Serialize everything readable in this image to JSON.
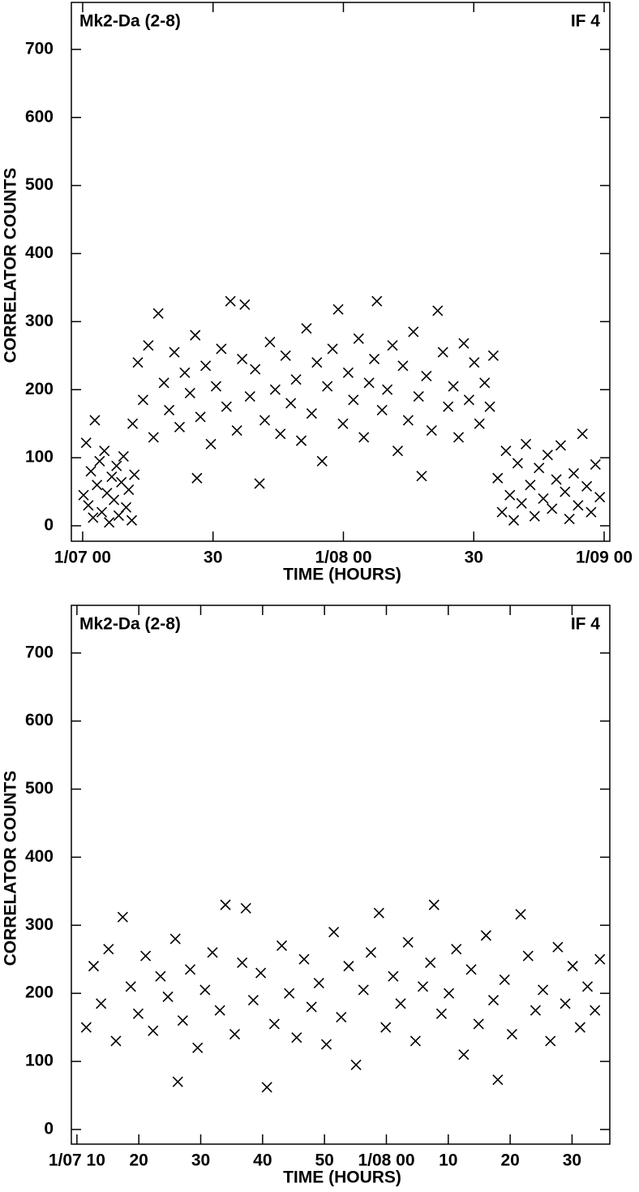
{
  "chart_data": [
    {
      "type": "scatter",
      "title": "Mk2-Da (2-8)",
      "annotation": "IF 4",
      "x_label": "TIME (HOURS)",
      "y_label": "CORRELATOR COUNTS",
      "color": "#000000",
      "xlim": [
        -2.6,
        121.3
      ],
      "ylim": [
        -22.7,
        769
      ],
      "xticks": [
        {
          "value": 0,
          "label": "1/07 00"
        },
        30,
        {
          "value": 60,
          "label": "1/08 00"
        },
        {
          "value": 90,
          "label": "30"
        },
        {
          "value": 120,
          "label": "1/09 00"
        }
      ],
      "yticks": [
        0,
        100,
        200,
        300,
        400,
        500,
        600,
        700
      ],
      "x": [
        0.2,
        0.8,
        1.3,
        1.9,
        2.4,
        2.8,
        3.3,
        3.9,
        4.4,
        5.0,
        5.6,
        6.1,
        6.7,
        7.2,
        7.8,
        8.3,
        8.9,
        9.4,
        10.0,
        10.6,
        11.3,
        11.9,
        11.5,
        12.7,
        13.9,
        15.1,
        16.3,
        17.4,
        18.7,
        19.9,
        21.1,
        22.3,
        23.5,
        24.7,
        25.9,
        26.3,
        27.1,
        28.3,
        29.5,
        30.7,
        31.9,
        33.1,
        34,
        35.5,
        36.7,
        37.3,
        38.5,
        39.7,
        40.7,
        41.9,
        43.1,
        44.3,
        45.5,
        46.7,
        47.9,
        49.1,
        50.3,
        51.5,
        52.7,
        53.9,
        55.1,
        56.3,
        57.5,
        58.8,
        59.9,
        61.1,
        62.3,
        63.5,
        64.7,
        65.9,
        67.1,
        67.7,
        68.9,
        70.1,
        71.3,
        72.5,
        73.7,
        74.9,
        76.1,
        77.3,
        78,
        79.1,
        80.3,
        81.7,
        82.9,
        84.1,
        85.3,
        86.5,
        87.7,
        88.9,
        90.1,
        91.3,
        92.5,
        93.7,
        94.5,
        95.5,
        96.5,
        97.4,
        98.3,
        99.2,
        100.1,
        101,
        102,
        103,
        104,
        105,
        106,
        107,
        108,
        109,
        110,
        111,
        112,
        113,
        114,
        115,
        116,
        117,
        118,
        119
      ],
      "values": [
        45,
        122,
        30,
        80,
        12,
        155,
        60,
        95,
        20,
        110,
        48,
        5,
        72,
        38,
        88,
        15,
        64,
        102,
        27,
        53,
        8,
        75,
        150,
        240,
        185,
        265,
        130,
        312,
        210,
        170,
        255,
        145,
        225,
        195,
        280,
        70,
        160,
        235,
        120,
        205,
        260,
        175,
        330,
        140,
        245,
        325,
        190,
        230,
        62,
        155,
        270,
        200,
        135,
        250,
        180,
        215,
        125,
        290,
        165,
        240,
        95,
        205,
        260,
        318,
        150,
        225,
        185,
        275,
        130,
        210,
        245,
        330,
        170,
        200,
        265,
        110,
        235,
        155,
        285,
        190,
        73,
        220,
        140,
        316,
        255,
        175,
        205,
        130,
        268,
        185,
        240,
        150,
        210,
        175,
        250,
        70,
        20,
        110,
        45,
        8,
        92,
        33,
        120,
        60,
        14,
        85,
        40,
        104,
        25,
        68,
        118,
        50,
        10,
        77,
        30,
        135,
        58,
        20,
        90,
        42
      ]
    },
    {
      "type": "scatter",
      "title": "Mk2-Da (2-8)",
      "annotation": "IF 4",
      "x_label": "TIME (HOURS)",
      "y_label": "CORRELATOR COUNTS",
      "color": "#000000",
      "xlim": [
        9.1,
        96.1
      ],
      "ylim": [
        -21.5,
        770
      ],
      "xticks": [
        {
          "value": 10,
          "label": "1/07 10"
        },
        20,
        30,
        40,
        50,
        {
          "value": 60,
          "label": "1/08 00"
        },
        {
          "value": 70,
          "label": "10"
        },
        {
          "value": 80,
          "label": "20"
        },
        {
          "value": 90,
          "label": "30"
        }
      ],
      "yticks": [
        0,
        100,
        200,
        300,
        400,
        500,
        600,
        700
      ],
      "x": [
        11.5,
        12.7,
        13.9,
        15.1,
        16.3,
        17.4,
        18.7,
        19.9,
        21.1,
        22.3,
        23.5,
        24.7,
        25.9,
        26.3,
        27.1,
        28.3,
        29.5,
        30.7,
        31.9,
        33.1,
        34,
        35.5,
        36.7,
        37.3,
        38.5,
        39.7,
        40.7,
        41.9,
        43.1,
        44.3,
        45.5,
        46.7,
        47.9,
        49.1,
        50.3,
        51.5,
        52.7,
        53.9,
        55.1,
        56.3,
        57.5,
        58.8,
        59.9,
        61.1,
        62.3,
        63.5,
        64.7,
        65.9,
        67.1,
        67.7,
        68.9,
        70.1,
        71.3,
        72.5,
        73.7,
        74.9,
        76.1,
        77.3,
        78,
        79.1,
        80.3,
        81.7,
        82.9,
        84.1,
        85.3,
        86.5,
        87.7,
        88.9,
        90.1,
        91.3,
        92.5,
        93.7,
        94.5
      ],
      "values": [
        150,
        240,
        185,
        265,
        130,
        312,
        210,
        170,
        255,
        145,
        225,
        195,
        280,
        70,
        160,
        235,
        120,
        205,
        260,
        175,
        330,
        140,
        245,
        325,
        190,
        230,
        62,
        155,
        270,
        200,
        135,
        250,
        180,
        215,
        125,
        290,
        165,
        240,
        95,
        205,
        260,
        318,
        150,
        225,
        185,
        275,
        130,
        210,
        245,
        330,
        170,
        200,
        265,
        110,
        235,
        155,
        285,
        190,
        73,
        220,
        140,
        316,
        255,
        175,
        205,
        130,
        268,
        185,
        240,
        150,
        210,
        175,
        250
      ]
    }
  ]
}
